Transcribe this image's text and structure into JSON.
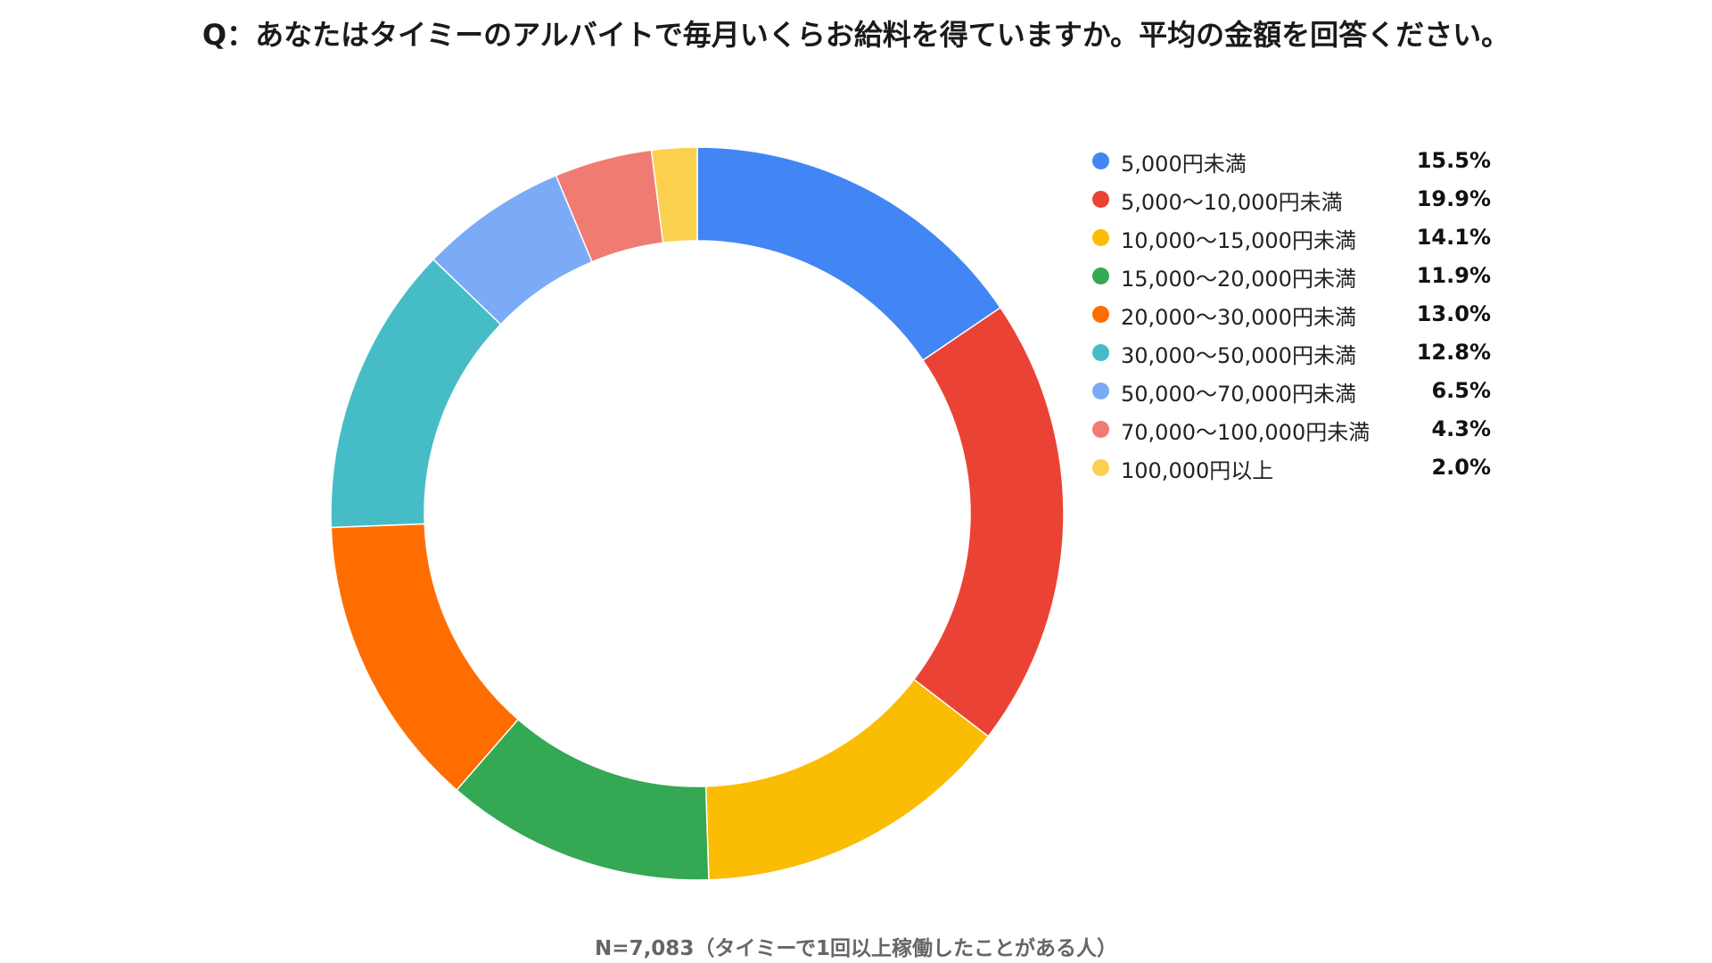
{
  "title": "Q：あなたはタイミーのアルバイトで毎月いくらお給料を得ていますか。平均の金額を回答ください。",
  "footnote": "N=7,083（タイミーで1回以上稼働したことがある人）",
  "chart_data": {
    "type": "pie",
    "donut": true,
    "start_angle": "12 o'clock",
    "direction": "clockwise",
    "legend_position": "right",
    "slices": [
      {
        "label": "5,000円未満",
        "value": 15.5,
        "display": "15.5%",
        "color": "#4285F4"
      },
      {
        "label": "5,000〜10,000円未満",
        "value": 19.9,
        "display": "19.9%",
        "color": "#EA4335"
      },
      {
        "label": "10,000〜15,000円未満",
        "value": 14.1,
        "display": "14.1%",
        "color": "#FBBC04"
      },
      {
        "label": "15,000〜20,000円未満",
        "value": 11.9,
        "display": "11.9%",
        "color": "#34A853"
      },
      {
        "label": "20,000〜30,000円未満",
        "value": 13.0,
        "display": "13.0%",
        "color": "#FF6D01"
      },
      {
        "label": "30,000〜50,000円未満",
        "value": 12.8,
        "display": "12.8%",
        "color": "#46BDC6"
      },
      {
        "label": "50,000〜70,000円未満",
        "value": 6.5,
        "display": "6.5%",
        "color": "#7BAAF7"
      },
      {
        "label": "70,000〜100,000円未満",
        "value": 4.3,
        "display": "4.3%",
        "color": "#F07B72"
      },
      {
        "label": "100,000円以上",
        "value": 2.0,
        "display": "2.0%",
        "color": "#FCD04F"
      }
    ]
  }
}
